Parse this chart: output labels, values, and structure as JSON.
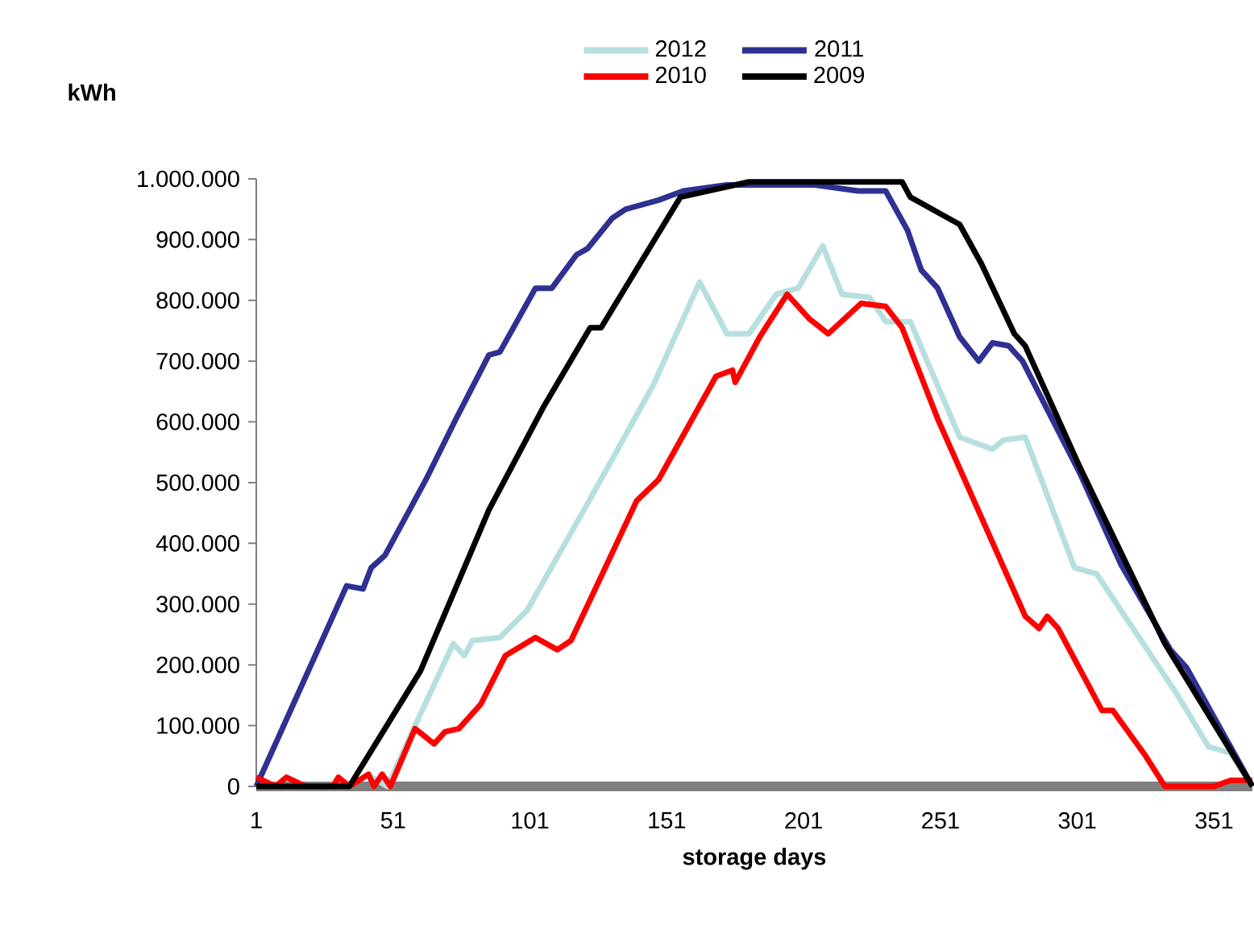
{
  "chart_data": {
    "type": "line",
    "xlabel": "storage days",
    "ylabel": "kWh",
    "xlim": [
      1,
      365
    ],
    "xticks": [
      1,
      51,
      101,
      151,
      201,
      251,
      301,
      351
    ],
    "ylim": [
      0,
      1000000
    ],
    "yticks": [
      {
        "value": 0,
        "label": "0"
      },
      {
        "value": 100000,
        "label": "100.000"
      },
      {
        "value": 200000,
        "label": "200.000"
      },
      {
        "value": 300000,
        "label": "300.000"
      },
      {
        "value": 400000,
        "label": "400.000"
      },
      {
        "value": 500000,
        "label": "500.000"
      },
      {
        "value": 600000,
        "label": "600.000"
      },
      {
        "value": 700000,
        "label": "700.000"
      },
      {
        "value": 800000,
        "label": "800.000"
      },
      {
        "value": 900000,
        "label": "900.000"
      },
      {
        "value": 1000000,
        "label": "1.000.000"
      }
    ],
    "grid": false,
    "legend": "top",
    "marker": "none",
    "line_style": "solid",
    "series": [
      {
        "name": "2012",
        "color": "#b7dfe0",
        "x": [
          41,
          49,
          59,
          73,
          77,
          80,
          90,
          100,
          122,
          146,
          163,
          173,
          181,
          191,
          199,
          208,
          215,
          225,
          231,
          240,
          258,
          270,
          274,
          282,
          300,
          308,
          337,
          349,
          357,
          365
        ],
        "values": [
          20000,
          0,
          100000,
          235000,
          215000,
          240000,
          245000,
          290000,
          465000,
          660000,
          830000,
          745000,
          745000,
          810000,
          820000,
          890000,
          810000,
          805000,
          765000,
          765000,
          575000,
          555000,
          570000,
          575000,
          360000,
          350000,
          155000,
          65000,
          55000,
          0
        ]
      },
      {
        "name": "2011",
        "color": "#2e3192",
        "x": [
          1,
          34,
          40,
          43,
          48,
          63,
          74,
          86,
          90,
          103,
          109,
          118,
          122,
          131,
          136,
          148,
          157,
          173,
          205,
          221,
          231,
          239,
          244,
          250,
          258,
          265,
          270,
          276,
          281,
          302,
          317,
          335,
          341,
          365
        ],
        "values": [
          0,
          330000,
          325000,
          360000,
          380000,
          505000,
          605000,
          710000,
          715000,
          820000,
          820000,
          875000,
          885000,
          935000,
          950000,
          965000,
          980000,
          990000,
          990000,
          980000,
          980000,
          915000,
          850000,
          820000,
          740000,
          700000,
          730000,
          725000,
          700000,
          515000,
          365000,
          225000,
          195000,
          0
        ]
      },
      {
        "name": "2010",
        "color": "#ff0000",
        "x": [
          1,
          8,
          12,
          19,
          29,
          31,
          35,
          42,
          44,
          47,
          50,
          59,
          66,
          70,
          75,
          83,
          92,
          103,
          111,
          116,
          140,
          148,
          169,
          175,
          176,
          185,
          195,
          203,
          210,
          222,
          231,
          237,
          250,
          282,
          287,
          290,
          294,
          310,
          314,
          326,
          333,
          351,
          357,
          365
        ],
        "values": [
          15000,
          0,
          15000,
          0,
          0,
          15000,
          0,
          20000,
          0,
          20000,
          0,
          95000,
          70000,
          90000,
          95000,
          135000,
          215000,
          245000,
          225000,
          240000,
          470000,
          505000,
          675000,
          685000,
          665000,
          740000,
          810000,
          770000,
          745000,
          795000,
          790000,
          755000,
          605000,
          280000,
          260000,
          280000,
          260000,
          125000,
          125000,
          50000,
          0,
          0,
          10000,
          10000
        ]
      },
      {
        "name": "2009",
        "color": "#000000",
        "x": [
          1,
          35,
          61,
          86,
          106,
          123,
          127,
          156,
          181,
          199,
          237,
          240,
          250,
          258,
          266,
          278,
          282,
          302,
          333,
          365
        ],
        "values": [
          0,
          0,
          190000,
          455000,
          625000,
          755000,
          755000,
          970000,
          995000,
          995000,
          995000,
          970000,
          945000,
          925000,
          860000,
          745000,
          725000,
          525000,
          235000,
          0
        ]
      }
    ]
  }
}
